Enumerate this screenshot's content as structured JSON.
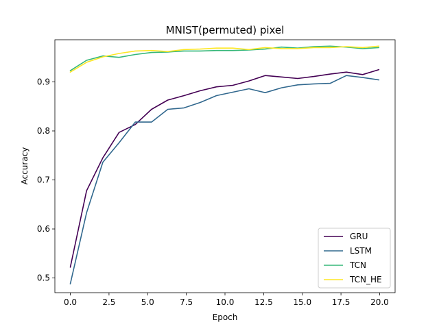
{
  "chart_data": {
    "type": "line",
    "title": "MNIST(permuted) pixel",
    "xlabel": "Epoch",
    "ylabel": "Accuracy",
    "xlim": [
      -1.0,
      21.0
    ],
    "ylim": [
      0.47,
      0.986
    ],
    "xticks": [
      0.0,
      2.5,
      5.0,
      7.5,
      10.0,
      12.5,
      15.0,
      17.5,
      20.0
    ],
    "xtick_labels": [
      "0.0",
      "2.5",
      "5.0",
      "7.5",
      "10.0",
      "12.5",
      "15.0",
      "17.5",
      "20.0"
    ],
    "yticks": [
      0.5,
      0.6,
      0.7,
      0.8,
      0.9
    ],
    "ytick_labels": [
      "0.5",
      "0.6",
      "0.7",
      "0.8",
      "0.9"
    ],
    "grid": false,
    "legend_position": "lower-right",
    "x": [
      0.0,
      1.05,
      2.1,
      3.15,
      4.2,
      5.25,
      6.3,
      7.35,
      8.4,
      9.45,
      10.5,
      11.55,
      12.6,
      13.65,
      14.7,
      15.75,
      16.8,
      17.85,
      18.9,
      19.95
    ],
    "series": [
      {
        "name": "GRU",
        "color": "#440154",
        "values": [
          0.522,
          0.678,
          0.745,
          0.797,
          0.813,
          0.844,
          0.863,
          0.872,
          0.882,
          0.89,
          0.893,
          0.902,
          0.913,
          0.91,
          0.907,
          0.911,
          0.916,
          0.92,
          0.915,
          0.925
        ]
      },
      {
        "name": "LSTM",
        "color": "#31688e",
        "values": [
          0.488,
          0.633,
          0.736,
          0.776,
          0.818,
          0.818,
          0.844,
          0.847,
          0.858,
          0.872,
          0.879,
          0.886,
          0.878,
          0.888,
          0.894,
          0.896,
          0.897,
          0.913,
          0.909,
          0.904
        ]
      },
      {
        "name": "TCN",
        "color": "#35b779",
        "values": [
          0.923,
          0.944,
          0.953,
          0.95,
          0.956,
          0.96,
          0.961,
          0.963,
          0.963,
          0.964,
          0.964,
          0.965,
          0.967,
          0.971,
          0.969,
          0.972,
          0.973,
          0.971,
          0.968,
          0.97
        ]
      },
      {
        "name": "TCN_HE",
        "color": "#fde725",
        "values": [
          0.92,
          0.94,
          0.951,
          0.958,
          0.963,
          0.964,
          0.962,
          0.966,
          0.967,
          0.969,
          0.969,
          0.966,
          0.97,
          0.968,
          0.968,
          0.97,
          0.97,
          0.972,
          0.97,
          0.973
        ]
      }
    ]
  }
}
